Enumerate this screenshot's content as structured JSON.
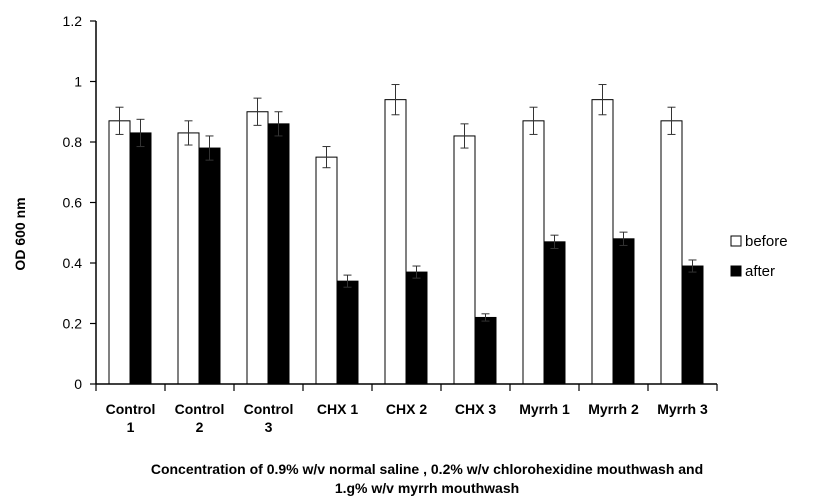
{
  "chart_data": {
    "type": "bar",
    "title": "",
    "categories": [
      [
        "Control",
        "1"
      ],
      [
        "Control",
        "2"
      ],
      [
        "Control",
        "3"
      ],
      [
        "CHX 1"
      ],
      [
        "CHX 2"
      ],
      [
        "CHX 3"
      ],
      [
        "Myrrh 1"
      ],
      [
        "Myrrh 2"
      ],
      [
        "Myrrh 3"
      ]
    ],
    "series": [
      {
        "name": "before",
        "color": "#ffffff",
        "values": [
          0.87,
          0.83,
          0.9,
          0.75,
          0.94,
          0.82,
          0.87,
          0.94,
          0.87
        ],
        "error": [
          0.045,
          0.04,
          0.045,
          0.035,
          0.05,
          0.04,
          0.045,
          0.05,
          0.045
        ]
      },
      {
        "name": "after",
        "color": "#000000",
        "values": [
          0.83,
          0.78,
          0.86,
          0.34,
          0.37,
          0.22,
          0.47,
          0.48,
          0.39
        ],
        "error": [
          0.045,
          0.04,
          0.04,
          0.02,
          0.02,
          0.012,
          0.022,
          0.022,
          0.02
        ]
      }
    ],
    "ylabel": "OD  600 nm",
    "xlabel_lines": [
      "Concentration of 0.9% w/v normal saline , 0.2% w/v chlorohexidine mouthwash and",
      "1.g% w/v myrrh mouthwash"
    ],
    "ylim": [
      0,
      1.2
    ],
    "yticks": [
      "0",
      "0.2",
      "0.4",
      "0.6",
      "0.8",
      "1",
      "1.2"
    ],
    "grid": false,
    "legend_position": "right"
  }
}
